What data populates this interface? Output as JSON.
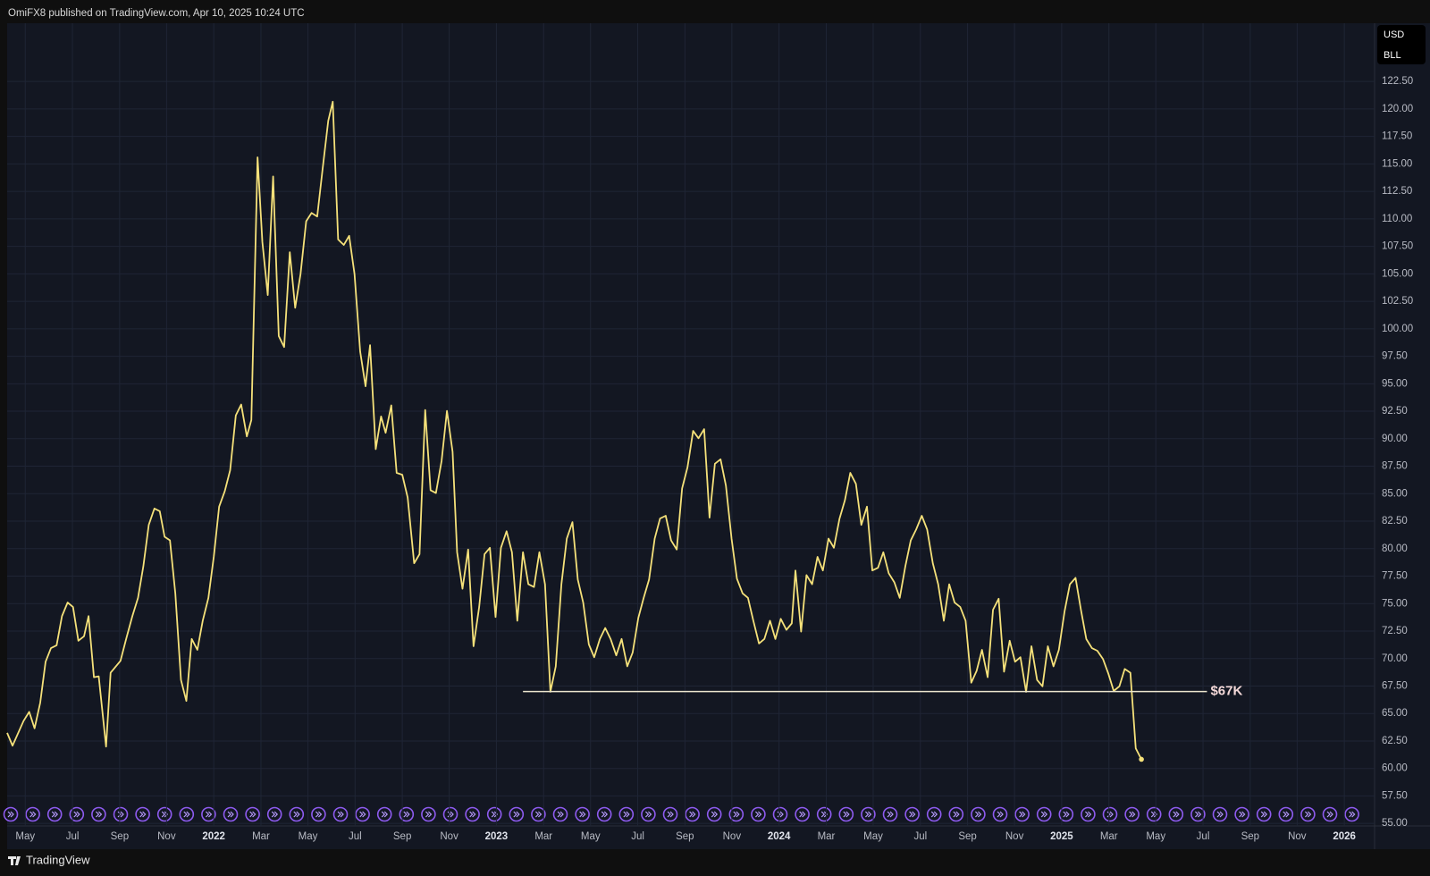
{
  "header": "OmiFX8 published on TradingView.com, Apr 10, 2025 10:24 UTC",
  "footer": "TradingView",
  "chart_data": {
    "type": "line",
    "currency": "USD",
    "symbol": "BLL",
    "color": "#f5e17a",
    "grid": true,
    "x": [
      2021.269,
      2021.288,
      2021.327,
      2021.347,
      2021.366,
      2021.386,
      2021.405,
      2021.424,
      2021.444,
      2021.463,
      2021.483,
      2021.502,
      2021.521,
      2021.541,
      2021.557,
      2021.576,
      2021.593,
      2021.619,
      2021.635,
      2021.67,
      2021.69,
      2021.712,
      2021.732,
      2021.751,
      2021.77,
      2021.79,
      2021.809,
      2021.826,
      2021.845,
      2021.864,
      2021.884,
      2021.903,
      2021.922,
      2021.942,
      2021.961,
      2021.981,
      2022.0,
      2022.019,
      2022.039,
      2022.058,
      2022.078,
      2022.097,
      2022.117,
      2022.133,
      2022.155,
      2022.172,
      2022.191,
      2022.21,
      2022.23,
      2022.249,
      2022.269,
      2022.288,
      2022.307,
      2022.327,
      2022.346,
      2022.366,
      2022.385,
      2022.405,
      2022.421,
      2022.44,
      2022.46,
      2022.479,
      2022.498,
      2022.518,
      2022.537,
      2022.553,
      2022.573,
      2022.592,
      2022.608,
      2022.628,
      2022.647,
      2022.667,
      2022.686,
      2022.709,
      2022.728,
      2022.748,
      2022.767,
      2022.786,
      2022.806,
      2022.825,
      2022.845,
      2022.861,
      2022.88,
      2022.9,
      2022.919,
      2022.939,
      2022.958,
      2022.977,
      2022.997,
      2023.016,
      2023.036,
      2023.055,
      2023.074,
      2023.094,
      2023.113,
      2023.133,
      2023.152,
      2023.172,
      2023.191,
      2023.21,
      2023.23,
      2023.249,
      2023.269,
      2023.288,
      2023.307,
      2023.327,
      2023.346,
      2023.366,
      2023.385,
      2023.404,
      2023.424,
      2023.443,
      2023.463,
      2023.482,
      2023.502,
      2023.521,
      2023.54,
      2023.56,
      2023.579,
      2023.599,
      2023.618,
      2023.638,
      2023.657,
      2023.676,
      2023.696,
      2023.715,
      2023.735,
      2023.754,
      2023.773,
      2023.793,
      2023.812,
      2023.832,
      2023.851,
      2023.871,
      2023.89,
      2023.909,
      2023.929,
      2023.948,
      2023.968,
      2023.987,
      2024.006,
      2024.026,
      2024.045,
      2024.058,
      2024.078,
      2024.097,
      2024.117,
      2024.136,
      2024.155,
      2024.175,
      2024.194,
      2024.214,
      2024.233,
      2024.252,
      2024.272,
      2024.291,
      2024.311,
      2024.33,
      2024.35,
      2024.369,
      2024.388,
      2024.408,
      2024.427,
      2024.447,
      2024.466,
      2024.485,
      2024.505,
      2024.524,
      2024.544,
      2024.563,
      2024.583,
      2024.602,
      2024.621,
      2024.641,
      2024.66,
      2024.68,
      2024.699,
      2024.718,
      2024.738,
      2024.757,
      2024.777,
      2024.796,
      2024.816,
      2024.835,
      2024.854,
      2024.874,
      2024.893,
      2024.913,
      2024.932,
      2024.951,
      2024.971,
      2024.99,
      2025.01,
      2025.029,
      2025.049,
      2025.068,
      2025.087,
      2025.107,
      2025.126,
      2025.146,
      2025.165,
      2025.184,
      2025.204,
      2025.223,
      2025.243,
      2025.262,
      2025.282
    ],
    "values": [
      63.24,
      62.07,
      64.32,
      65.15,
      63.65,
      65.98,
      69.71,
      70.95,
      71.2,
      73.86,
      75.1,
      74.69,
      71.62,
      72.03,
      73.86,
      68.3,
      68.38,
      61.99,
      68.71,
      69.79,
      71.78,
      73.86,
      75.52,
      78.42,
      82.16,
      83.65,
      83.4,
      81.08,
      80.75,
      75.93,
      68.05,
      66.14,
      71.78,
      70.79,
      73.44,
      75.52,
      79.25,
      83.82,
      85.23,
      87.14,
      92.12,
      93.11,
      90.21,
      91.7,
      115.6,
      107.88,
      103.07,
      113.86,
      99.34,
      98.34,
      106.97,
      101.91,
      104.98,
      109.79,
      110.54,
      110.21,
      114.52,
      118.92,
      120.66,
      108.13,
      107.63,
      108.46,
      104.98,
      97.93,
      94.77,
      98.51,
      89.05,
      92.03,
      90.54,
      93.03,
      86.89,
      86.72,
      84.65,
      78.67,
      79.5,
      92.61,
      85.31,
      85.06,
      87.97,
      92.53,
      88.8,
      79.67,
      76.35,
      79.92,
      71.12,
      74.69,
      79.5,
      80.08,
      73.78,
      80.08,
      81.58,
      79.67,
      73.44,
      79.67,
      76.76,
      76.51,
      79.67,
      76.76,
      66.97,
      69.29,
      76.76,
      80.91,
      82.41,
      77.18,
      75.1,
      71.29,
      70.12,
      71.78,
      72.78,
      71.78,
      70.29,
      71.78,
      69.29,
      70.54,
      73.69,
      75.52,
      77.18,
      80.91,
      82.74,
      82.99,
      80.75,
      79.92,
      85.48,
      87.39,
      90.71,
      90.04,
      90.87,
      82.82,
      87.72,
      88.13,
      85.73,
      80.91,
      77.26,
      75.93,
      75.52,
      73.44,
      71.37,
      71.78,
      73.44,
      71.78,
      73.61,
      72.61,
      73.2,
      78.01,
      72.45,
      77.59,
      76.76,
      79.25,
      78.01,
      80.91,
      80.08,
      82.74,
      84.4,
      86.89,
      85.89,
      82.16,
      83.82,
      78.01,
      78.26,
      79.67,
      77.76,
      76.93,
      75.52,
      78.42,
      80.75,
      81.74,
      82.99,
      81.74,
      78.67,
      76.76,
      73.44,
      76.76,
      75.1,
      74.69,
      73.44,
      67.8,
      68.88,
      70.79,
      68.3,
      74.44,
      75.44,
      68.8,
      71.62,
      69.71,
      70.12,
      66.97,
      71.12,
      68.05,
      67.47,
      71.12,
      69.29,
      70.79,
      74.27,
      76.76,
      77.34,
      74.44,
      71.78,
      70.95,
      70.71,
      69.96,
      68.63,
      67.05,
      67.47,
      69.05,
      68.71,
      61.83,
      60.83
    ],
    "xlim": [
      2021.269,
      2026.107
    ],
    "ylim": [
      54.77,
      127.8
    ],
    "xticks": [
      {
        "value": 2021.333,
        "label": "May"
      },
      {
        "value": 2021.5,
        "label": "Jul"
      },
      {
        "value": 2021.667,
        "label": "Sep"
      },
      {
        "value": 2021.833,
        "label": "Nov"
      },
      2022,
      {
        "value": 2022.167,
        "label": "Mar"
      },
      {
        "value": 2022.333,
        "label": "May"
      },
      {
        "value": 2022.5,
        "label": "Jul"
      },
      {
        "value": 2022.667,
        "label": "Sep"
      },
      {
        "value": 2022.833,
        "label": "Nov"
      },
      2023,
      {
        "value": 2023.167,
        "label": "Mar"
      },
      {
        "value": 2023.333,
        "label": "May"
      },
      {
        "value": 2023.5,
        "label": "Jul"
      },
      {
        "value": 2023.667,
        "label": "Sep"
      },
      {
        "value": 2023.833,
        "label": "Nov"
      },
      2024,
      {
        "value": 2024.167,
        "label": "Mar"
      },
      {
        "value": 2024.333,
        "label": "May"
      },
      {
        "value": 2024.5,
        "label": "Jul"
      },
      {
        "value": 2024.667,
        "label": "Sep"
      },
      {
        "value": 2024.833,
        "label": "Nov"
      },
      2025,
      {
        "value": 2025.167,
        "label": "Mar"
      },
      {
        "value": 2025.333,
        "label": "May"
      },
      {
        "value": 2025.5,
        "label": "Jul"
      },
      {
        "value": 2025.667,
        "label": "Sep"
      },
      {
        "value": 2025.833,
        "label": "Nov"
      },
      2026
    ],
    "yticks": [
      {
        "value": 55,
        "label": "55.00"
      },
      {
        "value": 57.5,
        "label": "57.50"
      },
      {
        "value": 60,
        "label": "60.00"
      },
      {
        "value": 62.5,
        "label": "62.50"
      },
      {
        "value": 65,
        "label": "65.00"
      },
      {
        "value": 67.5,
        "label": "67.50"
      },
      {
        "value": 70,
        "label": "70.00"
      },
      {
        "value": 72.5,
        "label": "72.50"
      },
      {
        "value": 75,
        "label": "75.00"
      },
      {
        "value": 77.5,
        "label": "77.50"
      },
      {
        "value": 80,
        "label": "80.00"
      },
      {
        "value": 82.5,
        "label": "82.50"
      },
      {
        "value": 85,
        "label": "85.00"
      },
      {
        "value": 87.5,
        "label": "87.50"
      },
      {
        "value": 90,
        "label": "90.00"
      },
      {
        "value": 92.5,
        "label": "92.50"
      },
      {
        "value": 95,
        "label": "95.00"
      },
      {
        "value": 97.5,
        "label": "97.50"
      },
      {
        "value": 100,
        "label": "100.00"
      },
      {
        "value": 102.5,
        "label": "102.50"
      },
      {
        "value": 105,
        "label": "105.00"
      },
      {
        "value": 107.5,
        "label": "107.50"
      },
      {
        "value": 110,
        "label": "110.00"
      },
      {
        "value": 112.5,
        "label": "112.50"
      },
      {
        "value": 115,
        "label": "115.00"
      },
      {
        "value": 117.5,
        "label": "117.50"
      },
      {
        "value": 120,
        "label": "120.00"
      },
      {
        "value": 122.5,
        "label": "122.50"
      }
    ],
    "hlines": [
      {
        "value": 67,
        "label": "$67K",
        "xlim": [
          2023.094,
          2025.514
        ],
        "color": "#ece6cf"
      }
    ]
  }
}
